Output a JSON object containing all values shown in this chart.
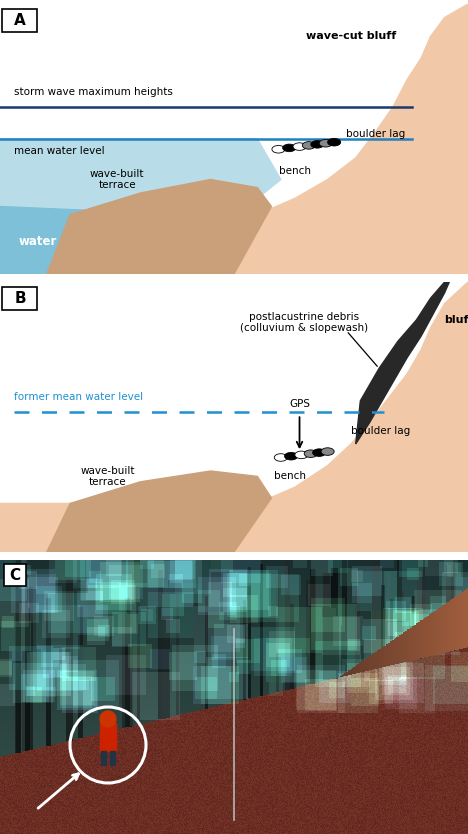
{
  "panel_A": {
    "label": "A",
    "skin_color": "#f2c9a8",
    "water_color_light": "#b8dde8",
    "water_color_mid": "#7dc0d8",
    "sediment_color": "#c9a07a",
    "storm_line_color": "#1a3a6e",
    "mean_water_color": "#2080c0",
    "text_storm": "storm wave maximum heights",
    "text_mean": "mean water level",
    "text_wave_built": "wave-built\nterrace",
    "text_water": "water",
    "text_bluff": "wave-cut bluff",
    "text_bench": "bench",
    "text_boulder": "boulder lag"
  },
  "panel_B": {
    "label": "B",
    "skin_color": "#f2c9a8",
    "sediment_color": "#c9a07a",
    "debris_color": "#303030",
    "dashed_line_color": "#2090d0",
    "text_former": "former mean water level",
    "text_wave_built": "wave-built\nterrace",
    "text_bluff": "bluff",
    "text_bench": "bench",
    "text_boulder": "boulder lag",
    "text_debris": "postlacustrine debris\n(colluvium & slopewash)",
    "text_gps": "GPS"
  },
  "panel_C": {
    "label": "C"
  },
  "border_color": "#000000",
  "bg_color": "#ffffff"
}
